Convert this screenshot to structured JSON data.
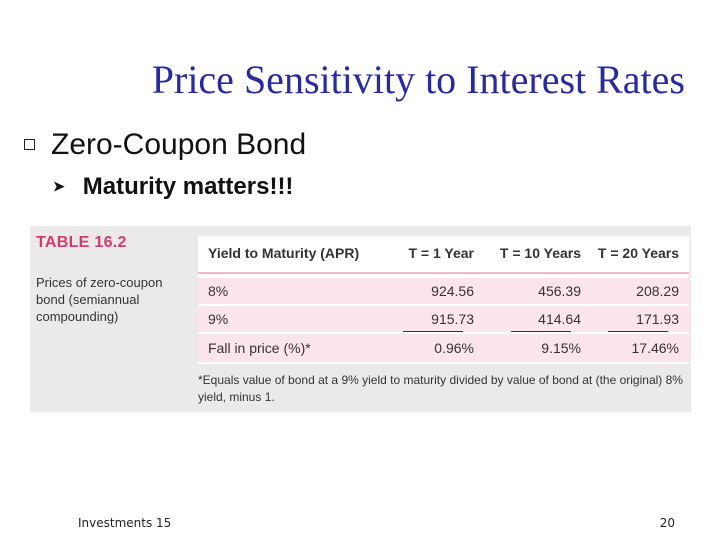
{
  "slide": {
    "title": "Price Sensitivity to Interest Rates",
    "bullet1": "Zero-Coupon Bond",
    "bullet2": "Maturity matters!!!",
    "footer_left": "Investments 15",
    "page_number": "20"
  },
  "table": {
    "label": "TABLE 16.2",
    "caption": "Prices of zero-coupon bond (semiannual compounding)",
    "headers": [
      "Yield to Maturity (APR)",
      "T = 1 Year",
      "T = 10 Years",
      "T = 20 Years"
    ],
    "rows": [
      [
        "8%",
        "924.56",
        "456.39",
        "208.29"
      ],
      [
        "9%",
        "915.73",
        "414.64",
        "171.93"
      ],
      [
        "Fall in price (%)*",
        "0.96%",
        "9.15%",
        "17.46%"
      ]
    ],
    "footnote": "*Equals value of bond at a 9% yield to maturity divided by value of bond at (the original) 8% yield, minus 1."
  },
  "colors": {
    "title": "#2a2aa0",
    "accent": "#d23c6a",
    "row_fill": "#fbe4ec",
    "figure_bg": "#ece9ea"
  }
}
